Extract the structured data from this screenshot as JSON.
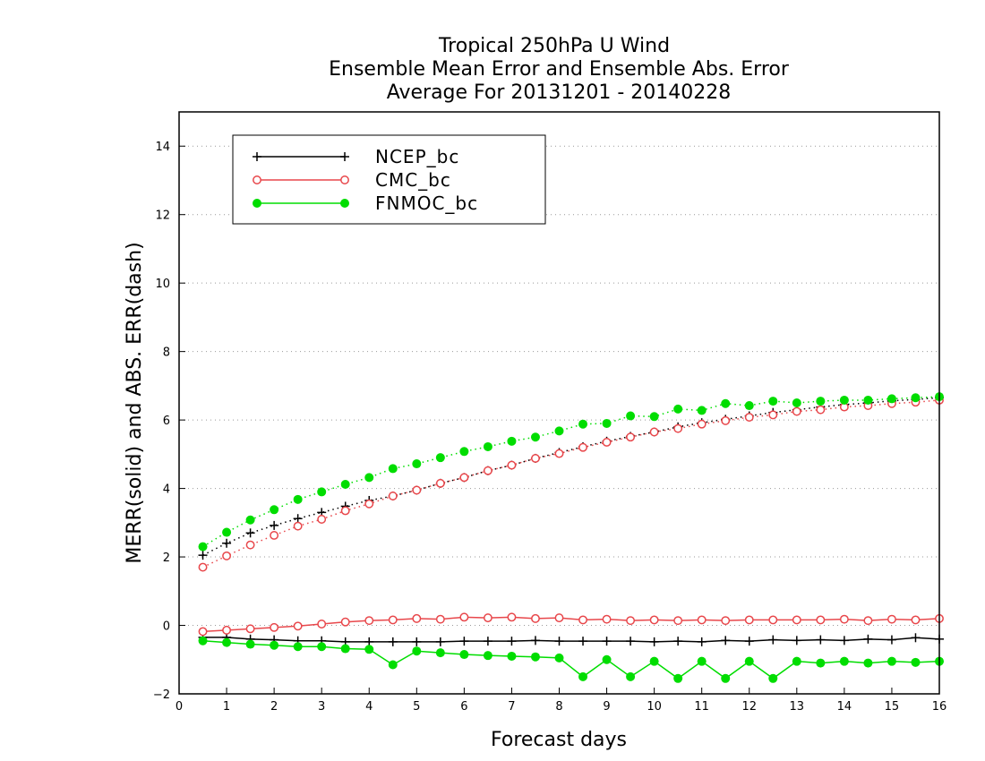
{
  "chart_data": {
    "type": "line",
    "title": [
      "Tropical 250hPa U Wind",
      "Ensemble Mean Error and Ensemble Abs. Error",
      "Average For 20131201 - 20140228"
    ],
    "xlabel": "Forecast days",
    "ylabel": "MERR(solid) and ABS. ERR(dash)",
    "xlim": [
      0,
      16
    ],
    "ylim": [
      -2,
      15
    ],
    "xticks": [
      0,
      1,
      2,
      3,
      4,
      5,
      6,
      7,
      8,
      9,
      10,
      11,
      12,
      13,
      14,
      15,
      16
    ],
    "yticks": [
      -2,
      0,
      2,
      4,
      6,
      8,
      10,
      12,
      14
    ],
    "ytick_labels": [
      "−2",
      "0",
      "2",
      "4",
      "6",
      "8",
      "10",
      "12",
      "14"
    ],
    "grid": true,
    "legend_position": "top-left",
    "x": [
      0.5,
      1,
      1.5,
      2,
      2.5,
      3,
      3.5,
      4,
      4.5,
      5,
      5.5,
      6,
      6.5,
      7,
      7.5,
      8,
      8.5,
      9,
      9.5,
      10,
      10.5,
      11,
      11.5,
      12,
      12.5,
      13,
      13.5,
      14,
      14.5,
      15,
      15.5,
      16
    ],
    "series": [
      {
        "name": "NCEP_bc",
        "color": "#000000",
        "marker": "plus",
        "merr": [
          -0.35,
          -0.35,
          -0.4,
          -0.42,
          -0.45,
          -0.45,
          -0.48,
          -0.48,
          -0.48,
          -0.48,
          -0.48,
          -0.46,
          -0.46,
          -0.46,
          -0.44,
          -0.46,
          -0.46,
          -0.46,
          -0.46,
          -0.48,
          -0.46,
          -0.48,
          -0.44,
          -0.46,
          -0.42,
          -0.44,
          -0.42,
          -0.44,
          -0.4,
          -0.42,
          -0.36,
          -0.4
        ],
        "abs_err": [
          2.05,
          2.4,
          2.7,
          2.92,
          3.12,
          3.3,
          3.48,
          3.65,
          3.78,
          3.95,
          4.15,
          4.32,
          4.52,
          4.68,
          4.88,
          5.05,
          5.22,
          5.38,
          5.52,
          5.65,
          5.8,
          5.92,
          6.02,
          6.12,
          6.22,
          6.3,
          6.38,
          6.45,
          6.5,
          6.56,
          6.6,
          6.65
        ]
      },
      {
        "name": "CMC_bc",
        "color": "#e8474b",
        "marker": "open-circle",
        "merr": [
          -0.18,
          -0.14,
          -0.1,
          -0.06,
          -0.02,
          0.04,
          0.1,
          0.14,
          0.16,
          0.2,
          0.18,
          0.24,
          0.22,
          0.24,
          0.2,
          0.22,
          0.16,
          0.18,
          0.14,
          0.16,
          0.14,
          0.16,
          0.14,
          0.16,
          0.16,
          0.16,
          0.16,
          0.18,
          0.14,
          0.18,
          0.16,
          0.2
        ],
        "abs_err": [
          1.7,
          2.03,
          2.35,
          2.63,
          2.9,
          3.1,
          3.35,
          3.55,
          3.78,
          3.95,
          4.15,
          4.32,
          4.52,
          4.68,
          4.88,
          5.02,
          5.2,
          5.35,
          5.5,
          5.65,
          5.75,
          5.88,
          5.98,
          6.08,
          6.15,
          6.25,
          6.3,
          6.38,
          6.42,
          6.48,
          6.52,
          6.58
        ]
      },
      {
        "name": "FNMOC_bc",
        "color": "#00dd00",
        "marker": "filled-circle",
        "merr": [
          -0.45,
          -0.5,
          -0.55,
          -0.58,
          -0.62,
          -0.62,
          -0.68,
          -0.7,
          -1.15,
          -0.75,
          -0.8,
          -0.85,
          -0.88,
          -0.9,
          -0.92,
          -0.95,
          -1.5,
          -1.0,
          -1.5,
          -1.05,
          -1.55,
          -1.05,
          -1.55,
          -1.05,
          -1.55,
          -1.05,
          -1.1,
          -1.05,
          -1.1,
          -1.05,
          -1.08,
          -1.05
        ],
        "abs_err": [
          2.3,
          2.72,
          3.08,
          3.38,
          3.68,
          3.9,
          4.12,
          4.32,
          4.58,
          4.72,
          4.9,
          5.08,
          5.22,
          5.38,
          5.5,
          5.68,
          5.88,
          5.9,
          6.12,
          6.1,
          6.32,
          6.28,
          6.48,
          6.42,
          6.55,
          6.5,
          6.55,
          6.58,
          6.58,
          6.62,
          6.65,
          6.68
        ]
      }
    ]
  }
}
